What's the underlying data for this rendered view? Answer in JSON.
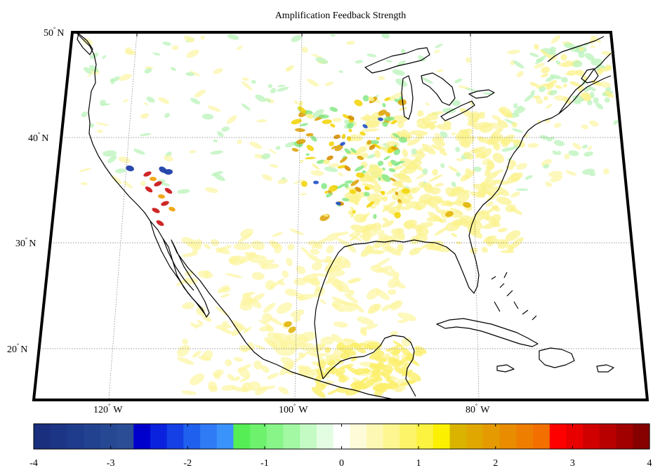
{
  "title": "Amplification Feedback Strength",
  "latitude_labels": [
    {
      "value": "50",
      "hemisphere": "N"
    },
    {
      "value": "40",
      "hemisphere": "N"
    },
    {
      "value": "30",
      "hemisphere": "N"
    },
    {
      "value": "20",
      "hemisphere": "N"
    }
  ],
  "longitude_labels": [
    {
      "value": "120",
      "hemisphere": "W"
    },
    {
      "value": "100",
      "hemisphere": "W"
    },
    {
      "value": "80",
      "hemisphere": "W"
    }
  ],
  "degree_symbol": "°",
  "colorbar": {
    "min": -4,
    "max": 4,
    "tick_labels": [
      "-4",
      "-3",
      "-2",
      "-1",
      "0",
      "1",
      "2",
      "3",
      "4"
    ],
    "colors": [
      "#1a2f7e",
      "#1c3585",
      "#1f3b8c",
      "#22418f",
      "#264792",
      "#2a4d96",
      "#0000cc",
      "#0a22dd",
      "#1540e6",
      "#2060ee",
      "#2f7af5",
      "#3a92fb",
      "#55ee55",
      "#6ef26e",
      "#88f588",
      "#a3f8a3",
      "#c4fbc4",
      "#e3fde3",
      "#ffffff",
      "#fefbd8",
      "#fef8b5",
      "#fef690",
      "#fdf46a",
      "#fcf240",
      "#fbf000",
      "#d9b300",
      "#dfa700",
      "#e49a00",
      "#e98c00",
      "#ee7e00",
      "#f37000",
      "#ff0000",
      "#e80000",
      "#d10000",
      "#b90000",
      "#a00000",
      "#860000"
    ]
  },
  "map": {
    "region": "North America",
    "grid": true
  }
}
